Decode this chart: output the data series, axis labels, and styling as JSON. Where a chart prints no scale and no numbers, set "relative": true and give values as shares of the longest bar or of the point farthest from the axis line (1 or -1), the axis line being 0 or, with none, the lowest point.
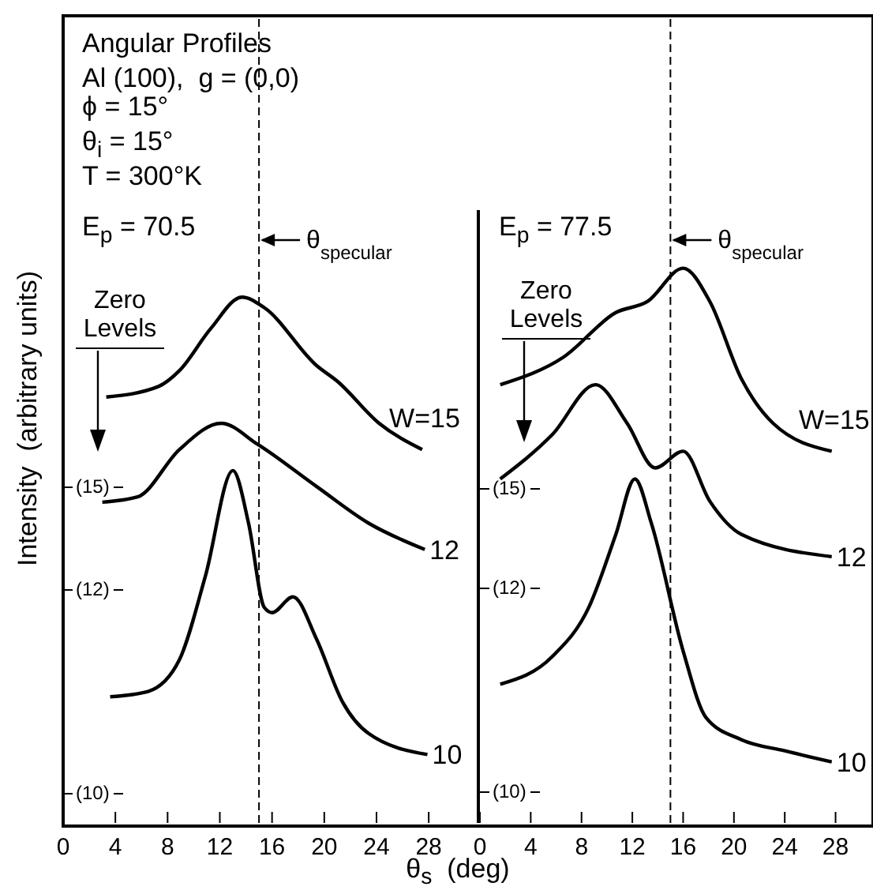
{
  "chart_data": [
    {
      "type": "line",
      "title": "Angular Profiles",
      "subtitle": "Al (100),  g = (0,0)",
      "ylabel": "Intensity  (arbitrary units)",
      "xlabel": "θ$_{s}$  (deg)",
      "relative": true,
      "xlim": [
        0,
        31.8
      ],
      "xticks": [
        0,
        4,
        8,
        12,
        16,
        20,
        24,
        28
      ],
      "marker": "none",
      "line_style": "solid",
      "grid": false,
      "legend": false,
      "annotations": [
        "ϕ = 15°",
        "θ$_{i}$ = 15°",
        "T = 300°K",
        "E$_{p}$ = 70.5",
        "(15)",
        "(12)",
        "(10)",
        "Zero Levels"
      ],
      "ref_lines": [
        {
          "axis": "x",
          "value": 15,
          "label": "θ$_{specular}$",
          "line_style": "dashed"
        }
      ],
      "series": [
        {
          "name": "W=15",
          "color": "#000000",
          "x": [
            3.3,
            7.3,
            8.9,
            11.3,
            13.7,
            15.4,
            19.4,
            21,
            24.2,
            27.5
          ],
          "values": [
            0.81,
            0.83,
            0.86,
            0.94,
            1.0,
            0.98,
            0.87,
            0.84,
            0.76,
            0.71
          ]
        },
        {
          "name": "12",
          "color": "#000000",
          "x": [
            3.0,
            5.7,
            8.9,
            12.1,
            14.9,
            19.4,
            23.4,
            27.7
          ],
          "values": [
            0.61,
            0.62,
            0.71,
            0.76,
            0.72,
            0.64,
            0.57,
            0.52
          ]
        },
        {
          "name": "10",
          "color": "#000000",
          "x": [
            3.6,
            6.5,
            8.9,
            10.9,
            13.0,
            14.2,
            15.4,
            16.0,
            17.6,
            19.4,
            21.4,
            23.4,
            27.9
          ],
          "values": [
            0.24,
            0.25,
            0.31,
            0.47,
            0.67,
            0.57,
            0.41,
            0.4,
            0.43,
            0.35,
            0.23,
            0.17,
            0.13
          ]
        }
      ]
    },
    {
      "type": "line",
      "relative": true,
      "xlim": [
        0,
        30.7
      ],
      "xticks": [
        0,
        4,
        8,
        12,
        16,
        20,
        24,
        28
      ],
      "marker": "none",
      "line_style": "solid",
      "grid": false,
      "legend": false,
      "annotations": [
        "E$_{p}$ = 77.5",
        "(15)",
        "(12)",
        "(10)",
        "Zero Levels"
      ],
      "ref_lines": [
        {
          "axis": "x",
          "value": 15,
          "label": "θ$_{specular}$",
          "line_style": "dashed"
        }
      ],
      "series": [
        {
          "name": "W=15",
          "color": "#000000",
          "x": [
            1.6,
            6.6,
            10.7,
            13.2,
            16.0,
            18.1,
            20.6,
            23.1,
            27.7
          ],
          "values": [
            0.79,
            0.84,
            0.92,
            0.94,
            1.0,
            0.94,
            0.8,
            0.72,
            0.67
          ]
        },
        {
          "name": "12",
          "color": "#000000",
          "x": [
            1.6,
            5.7,
            9.1,
            11.6,
            13.8,
            16.0,
            18.1,
            20.6,
            27.7
          ],
          "values": [
            0.62,
            0.7,
            0.79,
            0.72,
            0.64,
            0.67,
            0.58,
            0.52,
            0.48
          ]
        },
        {
          "name": "10",
          "color": "#000000",
          "x": [
            1.6,
            5.7,
            8.6,
            10.7,
            12.2,
            13.5,
            16.0,
            17.8,
            20.6,
            24.0,
            27.7
          ],
          "values": [
            0.25,
            0.3,
            0.39,
            0.52,
            0.62,
            0.54,
            0.31,
            0.19,
            0.15,
            0.13,
            0.11
          ]
        }
      ]
    }
  ]
}
